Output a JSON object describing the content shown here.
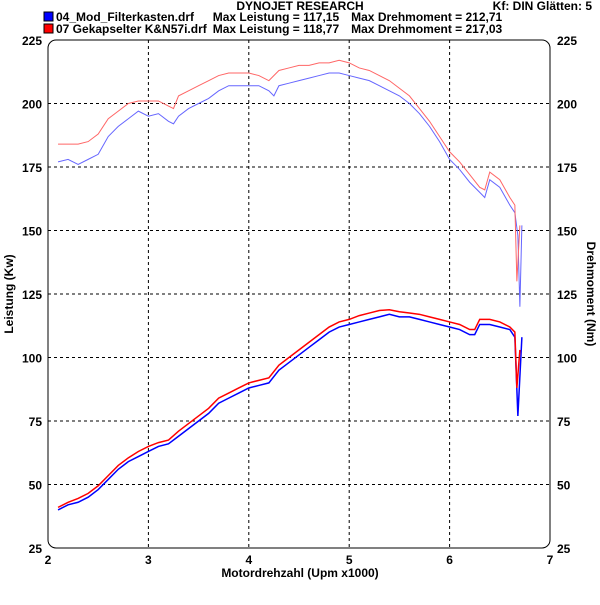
{
  "chart_data": {
    "type": "line",
    "title": "DYNOJET RESEARCH",
    "info": "Kf: DIN  Glätten: 5",
    "xlabel": "Motordrehzahl (Upm x1000)",
    "ylabel_left": "Leistung (Kw)",
    "ylabel_right": "Drehmoment (Nm)",
    "xlim": [
      2,
      7
    ],
    "ylim": [
      25,
      225
    ],
    "xticks": [
      "2",
      "3",
      "4",
      "5",
      "6",
      "7"
    ],
    "yticks": [
      "25",
      "50",
      "75",
      "100",
      "125",
      "150",
      "175",
      "200",
      "225"
    ],
    "grid": true,
    "legend": [
      {
        "file": "04_Mod_Filterkasten.drf",
        "power_text": "Max Leistung = 117,15",
        "torque_text": "Max Drehmoment = 212,71",
        "color": "#0000ff"
      },
      {
        "file": "07  Gekapselter  K&N57i.drf",
        "power_text": "Max Leistung = 118,77",
        "torque_text": "Max Drehmoment = 217,03",
        "color": "#ff0000"
      }
    ],
    "series": [
      {
        "name": "04 Leistung",
        "color": "#0000ff",
        "x": [
          2.1,
          2.2,
          2.3,
          2.4,
          2.5,
          2.6,
          2.7,
          2.8,
          2.9,
          3.0,
          3.1,
          3.2,
          3.3,
          3.4,
          3.5,
          3.6,
          3.7,
          3.8,
          3.9,
          4.0,
          4.1,
          4.2,
          4.3,
          4.4,
          4.5,
          4.6,
          4.7,
          4.8,
          4.9,
          5.0,
          5.1,
          5.2,
          5.3,
          5.4,
          5.5,
          5.6,
          5.7,
          5.8,
          5.9,
          6.0,
          6.1,
          6.2,
          6.25,
          6.3,
          6.4,
          6.5,
          6.6,
          6.65,
          6.68,
          6.72
        ],
        "y": [
          40,
          42,
          43,
          45,
          48,
          52,
          56,
          59,
          61,
          63,
          65,
          66,
          69,
          72,
          75,
          78,
          82,
          84,
          86,
          88,
          89,
          90,
          95,
          98,
          101,
          104,
          107,
          110,
          112,
          113,
          114,
          115,
          116,
          117,
          116,
          116,
          115,
          114,
          113,
          112,
          111,
          109,
          109,
          113,
          113,
          112,
          111,
          108,
          77,
          108
        ]
      },
      {
        "name": "07 Leistung",
        "color": "#ff0000",
        "x": [
          2.1,
          2.2,
          2.3,
          2.4,
          2.5,
          2.6,
          2.7,
          2.8,
          2.9,
          3.0,
          3.1,
          3.2,
          3.3,
          3.4,
          3.5,
          3.6,
          3.7,
          3.8,
          3.9,
          4.0,
          4.1,
          4.2,
          4.3,
          4.4,
          4.5,
          4.6,
          4.7,
          4.8,
          4.9,
          5.0,
          5.1,
          5.2,
          5.3,
          5.4,
          5.5,
          5.6,
          5.7,
          5.8,
          5.9,
          6.0,
          6.1,
          6.2,
          6.25,
          6.3,
          6.4,
          6.5,
          6.6,
          6.65,
          6.67,
          6.7
        ],
        "y": [
          41,
          43,
          44.5,
          46.5,
          49.5,
          53.5,
          57.5,
          60.5,
          63,
          65,
          66.5,
          67.5,
          71,
          74,
          77,
          80,
          84,
          86,
          88,
          90,
          91,
          92,
          97,
          100,
          103,
          106,
          109,
          112,
          114,
          115,
          116.5,
          117.5,
          118.5,
          118.8,
          118,
          117.5,
          117,
          116,
          115,
          114,
          113,
          111,
          111,
          115,
          115,
          114,
          112,
          110,
          88,
          103
        ]
      },
      {
        "name": "04 Drehmoment",
        "color": "#6666ff",
        "x": [
          2.1,
          2.2,
          2.3,
          2.4,
          2.5,
          2.6,
          2.7,
          2.8,
          2.9,
          3.0,
          3.1,
          3.2,
          3.25,
          3.3,
          3.4,
          3.5,
          3.6,
          3.7,
          3.8,
          3.9,
          4.0,
          4.1,
          4.2,
          4.25,
          4.3,
          4.4,
          4.5,
          4.6,
          4.7,
          4.8,
          4.9,
          5.0,
          5.1,
          5.2,
          5.3,
          5.4,
          5.5,
          5.6,
          5.7,
          5.8,
          5.9,
          6.0,
          6.1,
          6.2,
          6.3,
          6.35,
          6.4,
          6.5,
          6.6,
          6.65,
          6.68,
          6.7,
          6.72
        ],
        "y": [
          177,
          178,
          176,
          178,
          180,
          187,
          191,
          194,
          197,
          195,
          196,
          193,
          192,
          195,
          198,
          200,
          202,
          205,
          207,
          207,
          207,
          207,
          205,
          203,
          207,
          208,
          209,
          210,
          211,
          212,
          212,
          211,
          210,
          209,
          207,
          205,
          203,
          200,
          196,
          191,
          185,
          178,
          174,
          169,
          165,
          163,
          170,
          167,
          160,
          157,
          148,
          120,
          152
        ]
      },
      {
        "name": "07 Drehmoment",
        "color": "#ff6666",
        "x": [
          2.1,
          2.2,
          2.3,
          2.4,
          2.5,
          2.6,
          2.7,
          2.8,
          2.9,
          3.0,
          3.1,
          3.2,
          3.25,
          3.3,
          3.4,
          3.5,
          3.6,
          3.7,
          3.8,
          3.9,
          4.0,
          4.1,
          4.2,
          4.3,
          4.4,
          4.5,
          4.6,
          4.7,
          4.8,
          4.9,
          5.0,
          5.1,
          5.2,
          5.3,
          5.4,
          5.5,
          5.6,
          5.7,
          5.8,
          5.9,
          6.0,
          6.1,
          6.2,
          6.3,
          6.35,
          6.4,
          6.5,
          6.6,
          6.65,
          6.67,
          6.7
        ],
        "y": [
          184,
          184,
          184,
          185,
          188,
          194,
          197,
          200,
          201,
          201,
          201,
          199,
          198,
          203,
          205,
          207,
          209,
          211,
          212,
          212,
          212,
          211,
          209,
          213,
          214,
          215,
          215,
          216,
          216,
          217,
          216,
          214,
          213,
          211,
          209,
          206,
          203,
          198,
          193,
          187,
          181,
          177,
          172,
          167,
          166,
          173,
          170,
          163,
          160,
          130,
          152
        ]
      }
    ]
  }
}
